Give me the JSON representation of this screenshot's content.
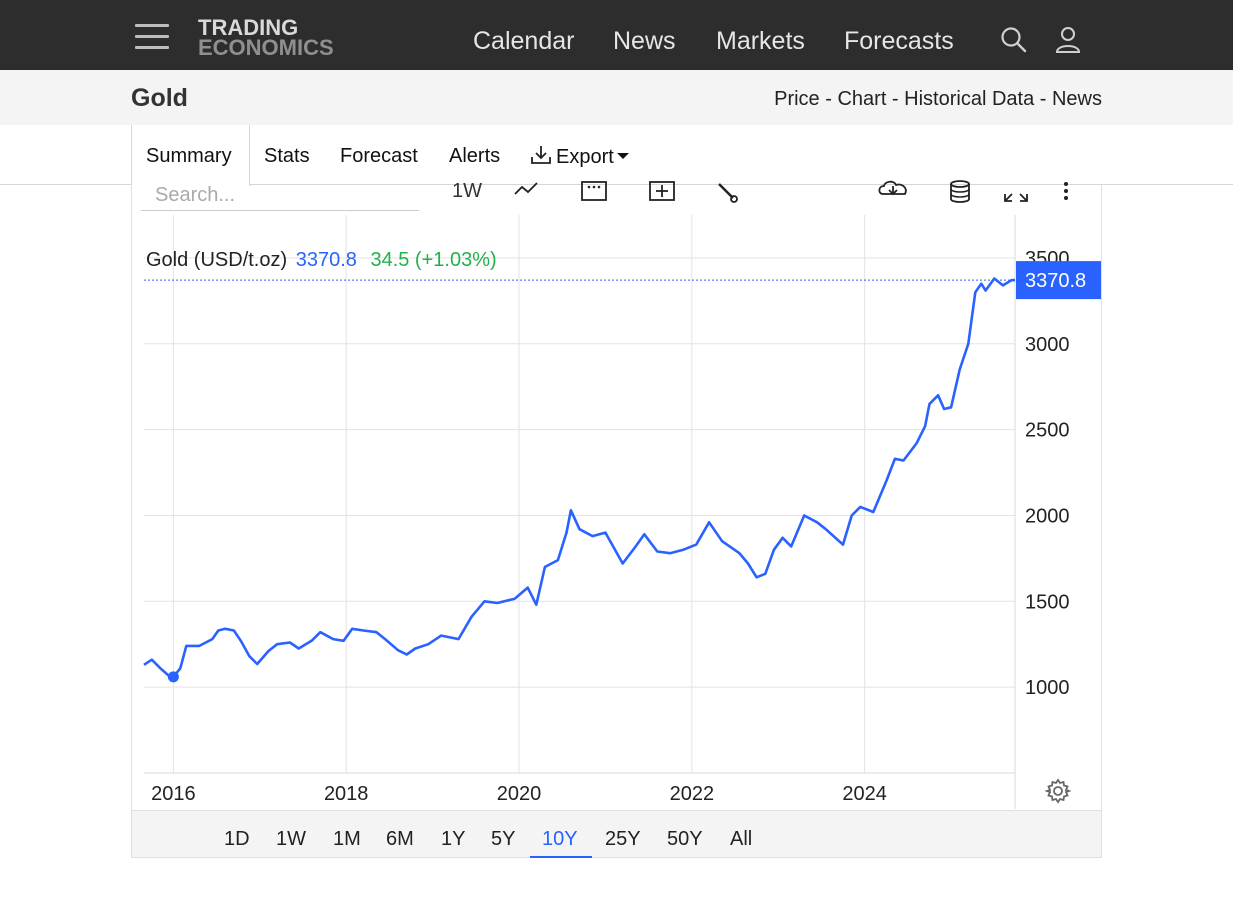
{
  "topbar": {
    "logo_line1": "TRADING",
    "logo_line2": "ECONOMICS",
    "nav": [
      "Calendar",
      "News",
      "Markets",
      "Forecasts"
    ]
  },
  "subheader": {
    "title": "Gold",
    "links": [
      "Price",
      "Chart",
      "Historical Data",
      "News"
    ],
    "separator": " - "
  },
  "tabs": [
    "Summary",
    "Stats",
    "Forecast",
    "Alerts",
    "Export"
  ],
  "toolbar": {
    "search_placeholder": "Search...",
    "interval": "1W"
  },
  "legend": {
    "name": "Gold (USD/t.oz)",
    "price": "3370.8",
    "change": "34.5 (+1.03%)"
  },
  "last_price_label": "3370.8",
  "ranges": [
    "1D",
    "1W",
    "1M",
    "6M",
    "1Y",
    "5Y",
    "10Y",
    "25Y",
    "50Y",
    "All"
  ],
  "active_range": "10Y",
  "colors": {
    "line": "#2962ff",
    "change_positive": "#22b14c",
    "topbar": "#2d2d2d"
  },
  "chart_data": {
    "type": "line",
    "title": "Gold (USD/t.oz)",
    "x_ticks": [
      "2016",
      "2018",
      "2020",
      "2022",
      "2024"
    ],
    "y_ticks": [
      1000,
      1500,
      2000,
      2500,
      3000,
      3500
    ],
    "ylim": [
      500,
      3750
    ],
    "xlim": [
      2015.66,
      2025.74
    ],
    "grid": true,
    "series": [
      {
        "name": "Gold",
        "points": [
          [
            2015.66,
            1130
          ],
          [
            2015.75,
            1160
          ],
          [
            2015.85,
            1110
          ],
          [
            2015.95,
            1065
          ],
          [
            2016.0,
            1060
          ],
          [
            2016.08,
            1110
          ],
          [
            2016.15,
            1240
          ],
          [
            2016.3,
            1240
          ],
          [
            2016.45,
            1280
          ],
          [
            2016.52,
            1330
          ],
          [
            2016.6,
            1340
          ],
          [
            2016.7,
            1330
          ],
          [
            2016.78,
            1270
          ],
          [
            2016.88,
            1180
          ],
          [
            2016.97,
            1135
          ],
          [
            2017.1,
            1210
          ],
          [
            2017.2,
            1250
          ],
          [
            2017.35,
            1260
          ],
          [
            2017.45,
            1225
          ],
          [
            2017.6,
            1270
          ],
          [
            2017.7,
            1320
          ],
          [
            2017.85,
            1280
          ],
          [
            2017.97,
            1270
          ],
          [
            2018.07,
            1340
          ],
          [
            2018.2,
            1330
          ],
          [
            2018.35,
            1320
          ],
          [
            2018.45,
            1280
          ],
          [
            2018.6,
            1215
          ],
          [
            2018.7,
            1190
          ],
          [
            2018.8,
            1225
          ],
          [
            2018.95,
            1250
          ],
          [
            2019.1,
            1300
          ],
          [
            2019.3,
            1280
          ],
          [
            2019.45,
            1410
          ],
          [
            2019.6,
            1500
          ],
          [
            2019.75,
            1490
          ],
          [
            2019.95,
            1515
          ],
          [
            2020.1,
            1580
          ],
          [
            2020.2,
            1480
          ],
          [
            2020.3,
            1700
          ],
          [
            2020.45,
            1740
          ],
          [
            2020.55,
            1900
          ],
          [
            2020.6,
            2030
          ],
          [
            2020.7,
            1920
          ],
          [
            2020.85,
            1880
          ],
          [
            2021.0,
            1900
          ],
          [
            2021.2,
            1720
          ],
          [
            2021.35,
            1820
          ],
          [
            2021.45,
            1890
          ],
          [
            2021.6,
            1790
          ],
          [
            2021.75,
            1780
          ],
          [
            2021.9,
            1800
          ],
          [
            2022.05,
            1830
          ],
          [
            2022.2,
            1960
          ],
          [
            2022.35,
            1850
          ],
          [
            2022.55,
            1780
          ],
          [
            2022.65,
            1720
          ],
          [
            2022.75,
            1640
          ],
          [
            2022.85,
            1660
          ],
          [
            2022.95,
            1800
          ],
          [
            2023.05,
            1870
          ],
          [
            2023.15,
            1820
          ],
          [
            2023.3,
            2000
          ],
          [
            2023.45,
            1960
          ],
          [
            2023.55,
            1920
          ],
          [
            2023.75,
            1830
          ],
          [
            2023.85,
            2000
          ],
          [
            2023.95,
            2050
          ],
          [
            2024.1,
            2020
          ],
          [
            2024.25,
            2200
          ],
          [
            2024.35,
            2330
          ],
          [
            2024.45,
            2320
          ],
          [
            2024.6,
            2420
          ],
          [
            2024.7,
            2520
          ],
          [
            2024.75,
            2650
          ],
          [
            2024.85,
            2700
          ],
          [
            2024.92,
            2620
          ],
          [
            2025.0,
            2630
          ],
          [
            2025.1,
            2850
          ],
          [
            2025.2,
            3000
          ],
          [
            2025.28,
            3300
          ],
          [
            2025.35,
            3350
          ],
          [
            2025.4,
            3310
          ],
          [
            2025.5,
            3380
          ],
          [
            2025.6,
            3340
          ],
          [
            2025.7,
            3370
          ],
          [
            2025.74,
            3370.8
          ]
        ]
      }
    ]
  }
}
